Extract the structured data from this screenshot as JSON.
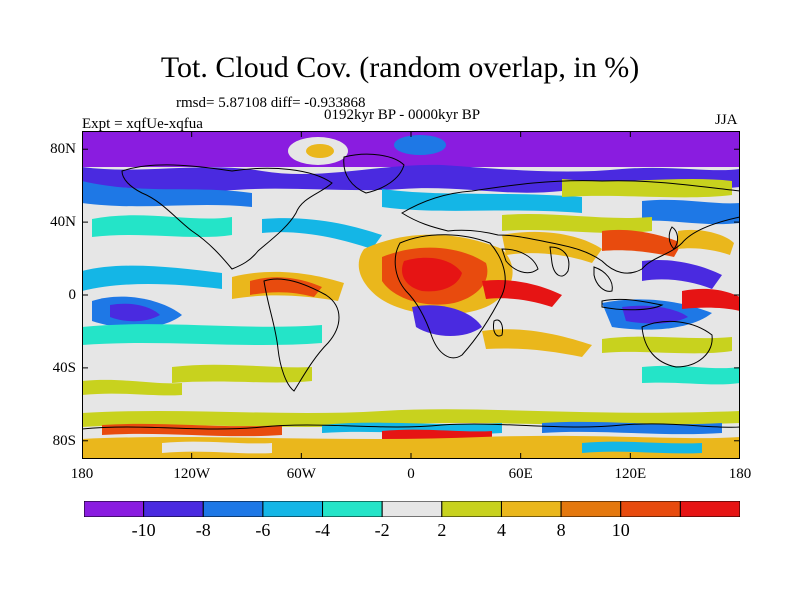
{
  "title": "Tot. Cloud Cov. (random overlap, in %)",
  "stats": "rmsd= 5.87108 diff= -0.933868",
  "period": "0192kyr BP - 0000kyr BP",
  "experiment": "Expt = xqfUe-xqfua",
  "season": "JJA",
  "map": {
    "projection": "cylindrical equidistant",
    "lon_range": [
      -180,
      180
    ],
    "lat_range": [
      -90,
      90
    ],
    "y_ticks": [
      "80N",
      "40N",
      "0",
      "40S",
      "80S"
    ],
    "y_tick_values": [
      80,
      40,
      0,
      -40,
      -80
    ],
    "x_ticks": [
      "180",
      "120W",
      "60W",
      "0",
      "60E",
      "120E",
      "180"
    ],
    "x_tick_values": [
      -180,
      -120,
      -60,
      0,
      60,
      120,
      180
    ],
    "background_color": "#e6e6e6",
    "coastline_color": "#000000"
  },
  "colorbar": {
    "labels": [
      "-10",
      "-8",
      "-6",
      "-4",
      "-2",
      "2",
      "4",
      "8",
      "10"
    ],
    "colors": [
      "#8a1ce0",
      "#4a2ae0",
      "#1e78e6",
      "#14b6e6",
      "#24e4c8",
      "#e6e6e6",
      "#c8d21e",
      "#eab71c",
      "#e4780e",
      "#e84b0e",
      "#e61414"
    ]
  }
}
